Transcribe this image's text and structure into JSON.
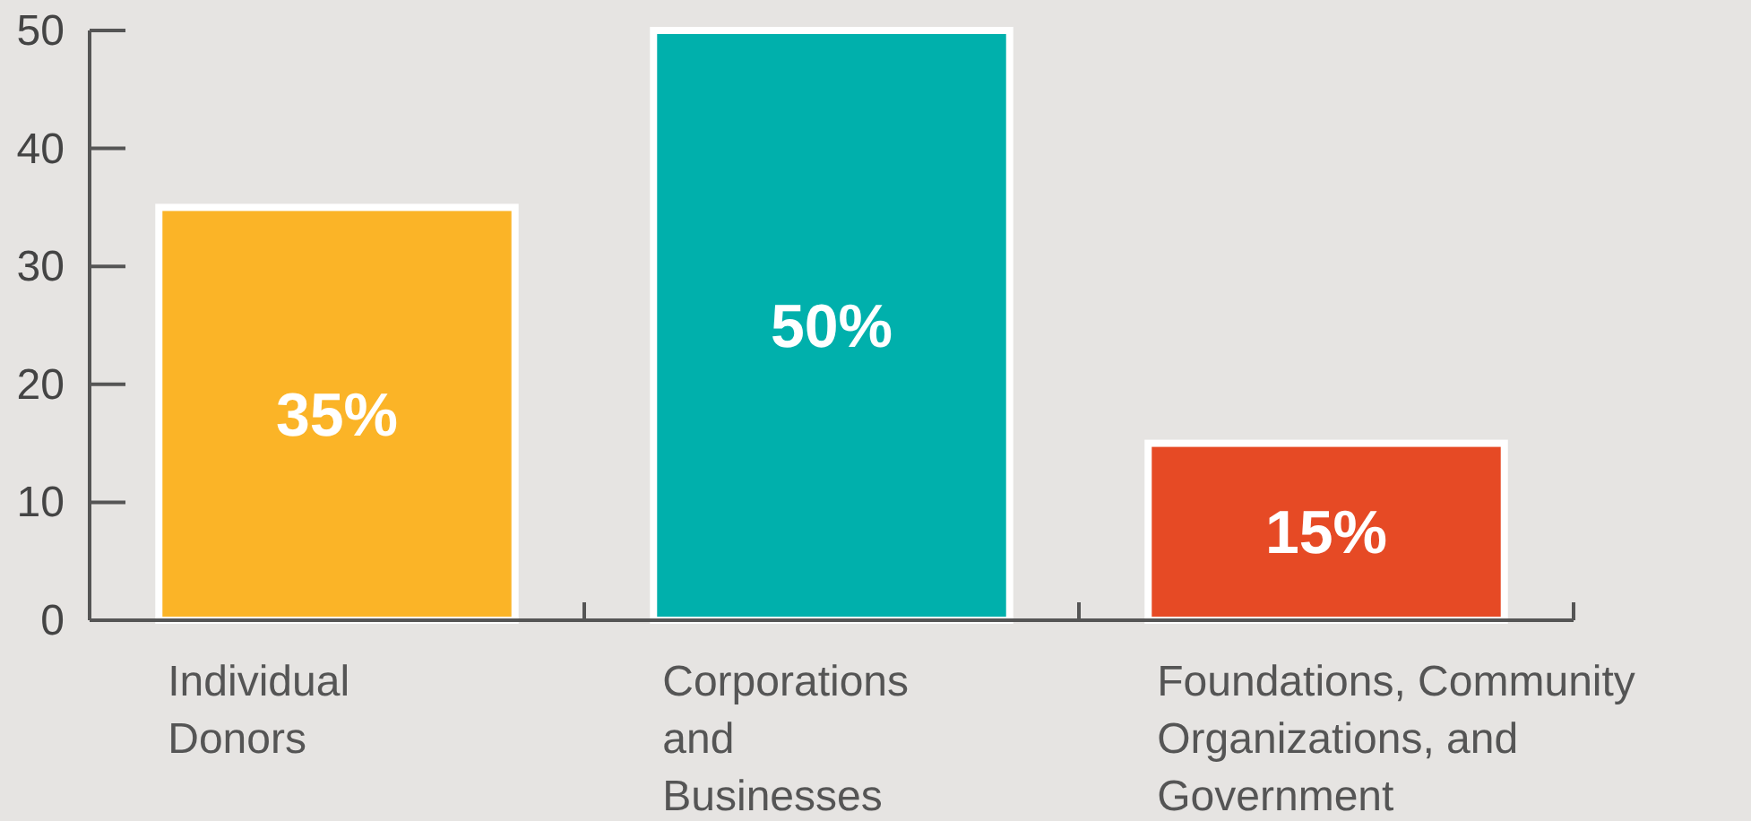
{
  "chart_data": {
    "type": "bar",
    "categories": [
      "Individual Donors",
      "Corporations and Businesses",
      "Foundations, Community Organizations, and Government"
    ],
    "values": [
      35,
      50,
      15
    ],
    "colors": [
      "#fbb427",
      "#00b0ac",
      "#e64a25"
    ],
    "value_labels": [
      "35%",
      "50%",
      "15%"
    ],
    "ylim": [
      0,
      50
    ],
    "yticks": [
      0,
      10,
      20,
      30,
      40,
      50
    ],
    "grid": false
  }
}
